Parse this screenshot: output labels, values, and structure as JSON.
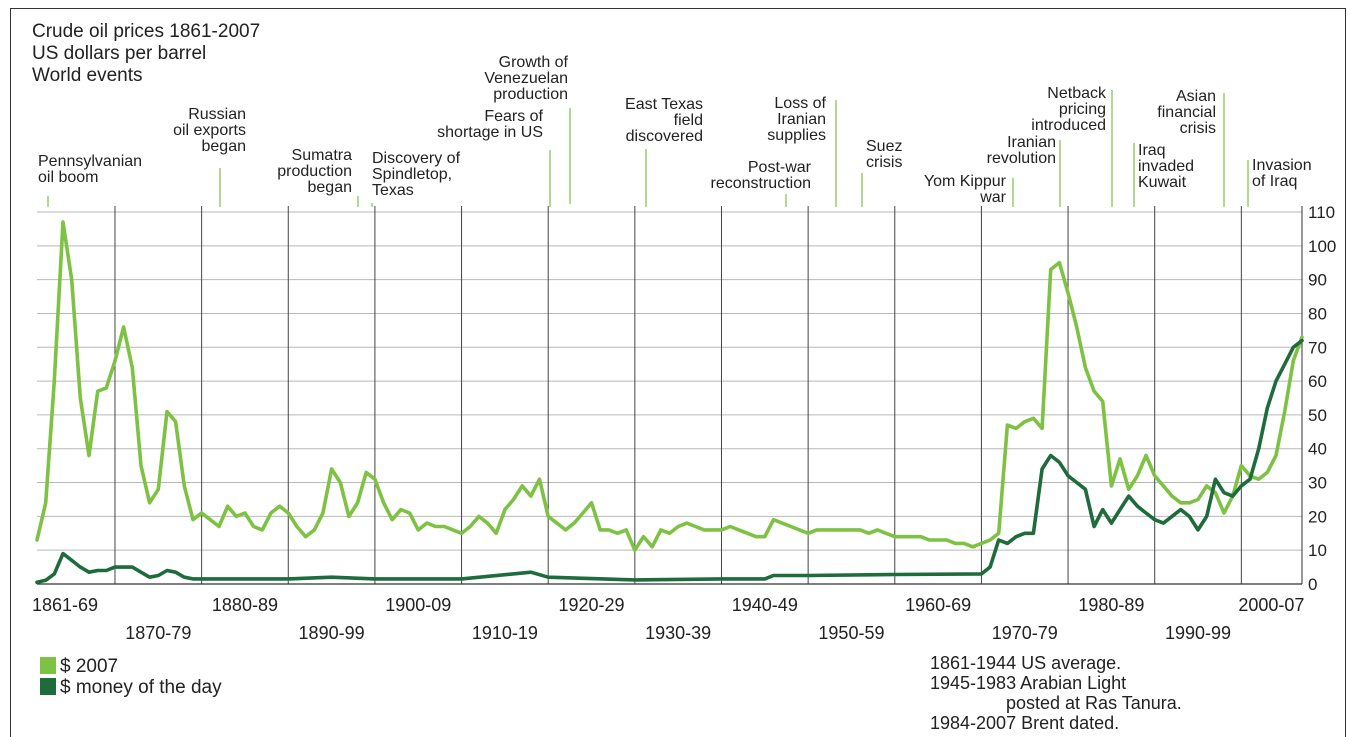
{
  "chart_data": {
    "type": "line",
    "title": "Crude oil prices 1861-2007",
    "subtitle": "US dollars per barrel",
    "events_label": "World events",
    "ylim": [
      0,
      110
    ],
    "xlim": [
      1861,
      2007
    ],
    "yticks": [
      0,
      10,
      20,
      30,
      40,
      50,
      60,
      70,
      80,
      90,
      100,
      110
    ],
    "grid": true,
    "legend_position": "bottom-left",
    "decade_labels": [
      {
        "label": "1861-69",
        "row": 1
      },
      {
        "label": "1870-79",
        "row": 2
      },
      {
        "label": "1880-89",
        "row": 1
      },
      {
        "label": "1890-99",
        "row": 2
      },
      {
        "label": "1900-09",
        "row": 1
      },
      {
        "label": "1910-19",
        "row": 2
      },
      {
        "label": "1920-29",
        "row": 1
      },
      {
        "label": "1930-39",
        "row": 2
      },
      {
        "label": "1940-49",
        "row": 1
      },
      {
        "label": "1950-59",
        "row": 2
      },
      {
        "label": "1960-69",
        "row": 1
      },
      {
        "label": "1970-79",
        "row": 2
      },
      {
        "label": "1980-89",
        "row": 1
      },
      {
        "label": "1990-99",
        "row": 2
      },
      {
        "label": "2000-07",
        "row": 1
      }
    ],
    "series": [
      {
        "name": "$ 2007",
        "color": "#7dc242",
        "x": [
          1861,
          1862,
          1863,
          1864,
          1865,
          1866,
          1867,
          1868,
          1869,
          1870,
          1871,
          1872,
          1873,
          1874,
          1875,
          1876,
          1877,
          1878,
          1879,
          1880,
          1881,
          1882,
          1883,
          1884,
          1885,
          1886,
          1887,
          1888,
          1889,
          1890,
          1891,
          1892,
          1893,
          1894,
          1895,
          1896,
          1897,
          1898,
          1899,
          1900,
          1901,
          1902,
          1903,
          1904,
          1905,
          1906,
          1907,
          1908,
          1909,
          1910,
          1911,
          1912,
          1913,
          1914,
          1915,
          1916,
          1917,
          1918,
          1919,
          1920,
          1921,
          1922,
          1923,
          1924,
          1925,
          1926,
          1927,
          1928,
          1929,
          1930,
          1931,
          1932,
          1933,
          1934,
          1935,
          1936,
          1937,
          1938,
          1939,
          1940,
          1941,
          1942,
          1943,
          1944,
          1945,
          1946,
          1947,
          1948,
          1949,
          1950,
          1951,
          1952,
          1953,
          1954,
          1955,
          1956,
          1957,
          1958,
          1959,
          1960,
          1961,
          1962,
          1963,
          1964,
          1965,
          1966,
          1967,
          1968,
          1969,
          1970,
          1971,
          1972,
          1973,
          1974,
          1975,
          1976,
          1977,
          1978,
          1979,
          1980,
          1981,
          1982,
          1983,
          1984,
          1985,
          1986,
          1987,
          1988,
          1989,
          1990,
          1991,
          1992,
          1993,
          1994,
          1995,
          1996,
          1997,
          1998,
          1999,
          2000,
          2001,
          2002,
          2003,
          2004,
          2005,
          2006,
          2007
        ],
        "values": [
          13,
          24,
          60,
          107,
          90,
          55,
          38,
          57,
          58,
          66,
          76,
          64,
          35,
          24,
          28,
          51,
          48,
          29,
          19,
          21,
          19,
          17,
          23,
          20,
          21,
          17,
          16,
          21,
          23,
          21,
          17,
          14,
          16,
          21,
          34,
          30,
          20,
          24,
          33,
          31,
          24,
          19,
          22,
          21,
          16,
          18,
          17,
          17,
          16,
          15,
          17,
          20,
          18,
          15,
          22,
          25,
          29,
          26,
          31,
          20,
          18,
          16,
          18,
          21,
          24,
          16,
          16,
          15,
          16,
          10,
          14,
          11,
          16,
          15,
          17,
          18,
          17,
          16,
          16,
          16,
          17,
          16,
          15,
          14,
          14,
          19,
          18,
          17,
          16,
          15,
          16,
          16,
          16,
          16,
          16,
          16,
          15,
          16,
          15,
          14,
          14,
          14,
          14,
          13,
          13,
          13,
          12,
          12,
          11,
          12,
          13,
          15,
          47,
          46,
          48,
          49,
          46,
          93,
          95,
          86,
          76,
          64,
          57,
          54,
          29,
          37,
          28,
          32,
          38,
          32,
          29,
          26,
          24,
          24,
          25,
          29,
          27,
          21,
          26,
          35,
          32,
          31,
          33,
          38,
          51,
          66,
          73
        ]
      },
      {
        "name": "$ money of the day",
        "color": "#1e6b3c",
        "x": [
          1861,
          1862,
          1863,
          1864,
          1865,
          1866,
          1867,
          1868,
          1869,
          1870,
          1871,
          1872,
          1873,
          1874,
          1875,
          1876,
          1877,
          1878,
          1879,
          1880,
          1890,
          1895,
          1900,
          1910,
          1918,
          1920,
          1930,
          1940,
          1945,
          1946,
          1947,
          1948,
          1950,
          1960,
          1970,
          1971,
          1972,
          1973,
          1974,
          1975,
          1976,
          1977,
          1978,
          1979,
          1980,
          1981,
          1982,
          1983,
          1984,
          1985,
          1986,
          1987,
          1988,
          1989,
          1990,
          1991,
          1992,
          1993,
          1994,
          1995,
          1996,
          1997,
          1998,
          1999,
          2000,
          2001,
          2002,
          2003,
          2004,
          2005,
          2006,
          2007
        ],
        "values": [
          0.5,
          1.1,
          3,
          9,
          7,
          5,
          3.5,
          4,
          4,
          5,
          5,
          5,
          3.5,
          2,
          2.5,
          4,
          3.5,
          2,
          1.5,
          1.5,
          1.5,
          2,
          1.5,
          1.5,
          3.5,
          2,
          1.2,
          1.5,
          1.5,
          2.5,
          2.5,
          2.5,
          2.5,
          2.8,
          3,
          5,
          13,
          12,
          14,
          15,
          15,
          34,
          38,
          36,
          32,
          30,
          28,
          17,
          22,
          18,
          22,
          26,
          23,
          21,
          19,
          18,
          20,
          22,
          20,
          16,
          20,
          31,
          27,
          26,
          29,
          31,
          40,
          52,
          60,
          65,
          70,
          72
        ]
      }
    ],
    "events": [
      {
        "lines": [
          "Pennsylvanian",
          "oil boom"
        ],
        "year": 1864
      },
      {
        "lines": [
          "Russian",
          "oil exports",
          "began"
        ],
        "year": 1884
      },
      {
        "lines": [
          "Sumatra",
          "production",
          "began"
        ],
        "year": 1898
      },
      {
        "lines": [
          "Discovery of",
          "Spindletop,",
          "Texas"
        ],
        "year": 1901
      },
      {
        "lines": [
          "Growth of",
          "Venezuelan",
          "production"
        ],
        "year": 1918
      },
      {
        "lines": [
          "Fears of",
          "shortage in US"
        ],
        "year": 1917
      },
      {
        "lines": [
          "East Texas",
          "field",
          "discovered"
        ],
        "year": 1931
      },
      {
        "lines": [
          "Post-war",
          "reconstruction"
        ],
        "year": 1946
      },
      {
        "lines": [
          "Loss of",
          "Iranian",
          "supplies"
        ],
        "year": 1951
      },
      {
        "lines": [
          "Suez",
          "crisis"
        ],
        "year": 1956
      },
      {
        "lines": [
          "Yom Kippur",
          "war"
        ],
        "year": 1973
      },
      {
        "lines": [
          "Iranian",
          "revolution"
        ],
        "year": 1979
      },
      {
        "lines": [
          "Netback",
          "pricing",
          "introduced"
        ],
        "year": 1986
      },
      {
        "lines": [
          "Iraq",
          "invaded",
          "Kuwait"
        ],
        "year": 1990
      },
      {
        "lines": [
          "Asian",
          "financial",
          "crisis"
        ],
        "year": 1997
      },
      {
        "lines": [
          "Invasion",
          "of Iraq"
        ],
        "year": 2003
      }
    ],
    "notes": [
      "1861-1944 US average.",
      "1945-1983 Arabian Light",
      "posted at Ras Tanura.",
      "1984-2007 Brent dated."
    ]
  }
}
